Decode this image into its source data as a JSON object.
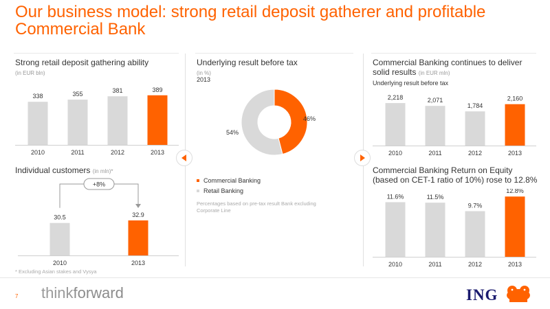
{
  "title": "Our business model: strong retail deposit gatherer and profitable Commercial Bank",
  "colors": {
    "orange": "#ff6200",
    "grey": "#d9d9d9",
    "ing_blue": "#1a1a6e"
  },
  "panels": {
    "deposits": {
      "title": "Strong retail deposit gathering ability",
      "unit": "(in EUR bln)"
    },
    "customers": {
      "title": "Individual customers",
      "unit": "(in mln)*",
      "growth_label": "+8%"
    },
    "result": {
      "title": "Underlying result before tax",
      "unit": "(in %)",
      "year": "2013",
      "note": "Percentages based on pre-tax result Bank excluding Corporate Line"
    },
    "commercial": {
      "title_line1": "Commercial Banking continues to deliver",
      "title_line2": "solid results",
      "unit": "(in EUR mln)",
      "subtitle": "Underlying result before tax"
    },
    "roe": {
      "title_line1": "Commercial Banking Return on Equity",
      "title_line2": "(based on CET-1 ratio of 10%) rose to 12.8%"
    }
  },
  "footnote": "* Excluding Asian stakes and Vysya",
  "footer": {
    "page": "7",
    "brand_part1": "think",
    "brand_part2": "forward",
    "logo": "ING"
  },
  "icons": {
    "left_nav": "triangle-left-icon",
    "right_nav": "triangle-right-icon",
    "logo": "lion-icon"
  },
  "chart_data": [
    {
      "type": "bar",
      "title": "Strong retail deposit gathering ability",
      "categories": [
        "2010",
        "2011",
        "2012",
        "2013"
      ],
      "values": [
        338,
        355,
        381,
        389
      ],
      "labels": [
        "338",
        "355",
        "381",
        "389"
      ],
      "highlight_index": 3,
      "ylim": [
        0,
        420
      ]
    },
    {
      "type": "bar",
      "title": "Individual customers",
      "categories": [
        "2010",
        "2013"
      ],
      "values": [
        30.5,
        32.9
      ],
      "labels": [
        "30.5",
        "32.9"
      ],
      "highlight_index": 1,
      "ylim": [
        0,
        40
      ]
    },
    {
      "type": "pie",
      "title": "Underlying result before tax",
      "categories": [
        "Commercial Banking",
        "Retail Banking"
      ],
      "values": [
        46,
        54
      ],
      "labels": [
        "46%",
        "54%"
      ]
    },
    {
      "type": "bar",
      "title": "Commercial Banking continues to deliver solid results",
      "categories": [
        "2010",
        "2011",
        "2012",
        "2013"
      ],
      "values": [
        2218,
        2071,
        1784,
        2160
      ],
      "labels": [
        "2,218",
        "2,071",
        "1,784",
        "2,160"
      ],
      "highlight_index": 3,
      "ylim": [
        0,
        2400
      ]
    },
    {
      "type": "bar",
      "title": "Commercial Banking Return on Equity",
      "categories": [
        "2010",
        "2011",
        "2012",
        "2013"
      ],
      "values": [
        11.6,
        11.5,
        9.7,
        12.8
      ],
      "labels": [
        "11.6%",
        "11.5%",
        "9.7%",
        "12.8%"
      ],
      "highlight_index": 3,
      "ylim": [
        0,
        14
      ]
    }
  ]
}
